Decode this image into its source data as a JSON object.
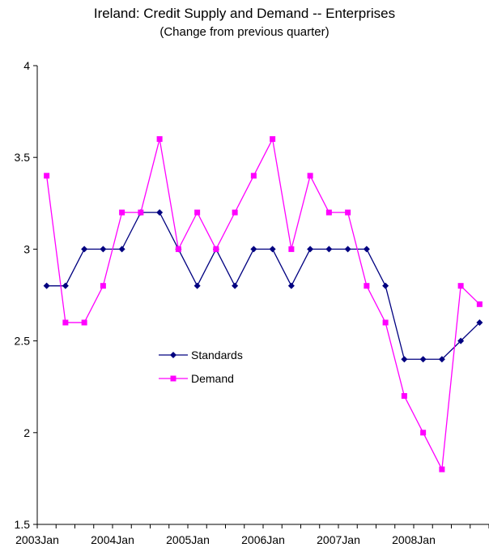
{
  "chart_data": {
    "type": "line",
    "title": "Ireland: Credit Supply and Demand -- Enterprises",
    "subtitle": "(Change from previous quarter)",
    "xlabel": "",
    "ylabel": "",
    "ylim": [
      1.5,
      4
    ],
    "yticks": [
      "1.5",
      "2",
      "2.5",
      "3",
      "3.5",
      "4"
    ],
    "x": [
      "2003Q1",
      "2003Q2",
      "2003Q3",
      "2003Q4",
      "2004Q1",
      "2004Q2",
      "2004Q3",
      "2004Q4",
      "2005Q1",
      "2005Q2",
      "2005Q3",
      "2005Q4",
      "2006Q1",
      "2006Q2",
      "2006Q3",
      "2006Q4",
      "2007Q1",
      "2007Q2",
      "2007Q3",
      "2007Q4",
      "2008Q1",
      "2008Q2",
      "2008Q3",
      "2008Q4"
    ],
    "xtick_labels": [
      "2003Jan",
      "2004Jan",
      "2005Jan",
      "2006Jan",
      "2007Jan",
      "2008Jan"
    ],
    "grid": false,
    "legend_position": "center-left",
    "series": [
      {
        "name": "Standards",
        "color": "#000080",
        "marker": "diamond",
        "values": [
          2.8,
          2.8,
          3.0,
          3.0,
          3.0,
          3.2,
          3.2,
          3.0,
          2.8,
          3.0,
          2.8,
          3.0,
          3.0,
          2.8,
          3.0,
          3.0,
          3.0,
          3.0,
          2.8,
          2.4,
          2.4,
          2.4,
          2.5,
          2.6
        ]
      },
      {
        "name": "Demand",
        "color": "#ff00ff",
        "marker": "square",
        "values": [
          3.4,
          2.6,
          2.6,
          2.8,
          3.2,
          3.2,
          3.6,
          3.0,
          3.2,
          3.0,
          3.2,
          3.4,
          3.6,
          3.0,
          3.4,
          3.2,
          3.2,
          2.8,
          2.6,
          2.2,
          2.0,
          1.8,
          2.8,
          2.7
        ]
      }
    ]
  }
}
